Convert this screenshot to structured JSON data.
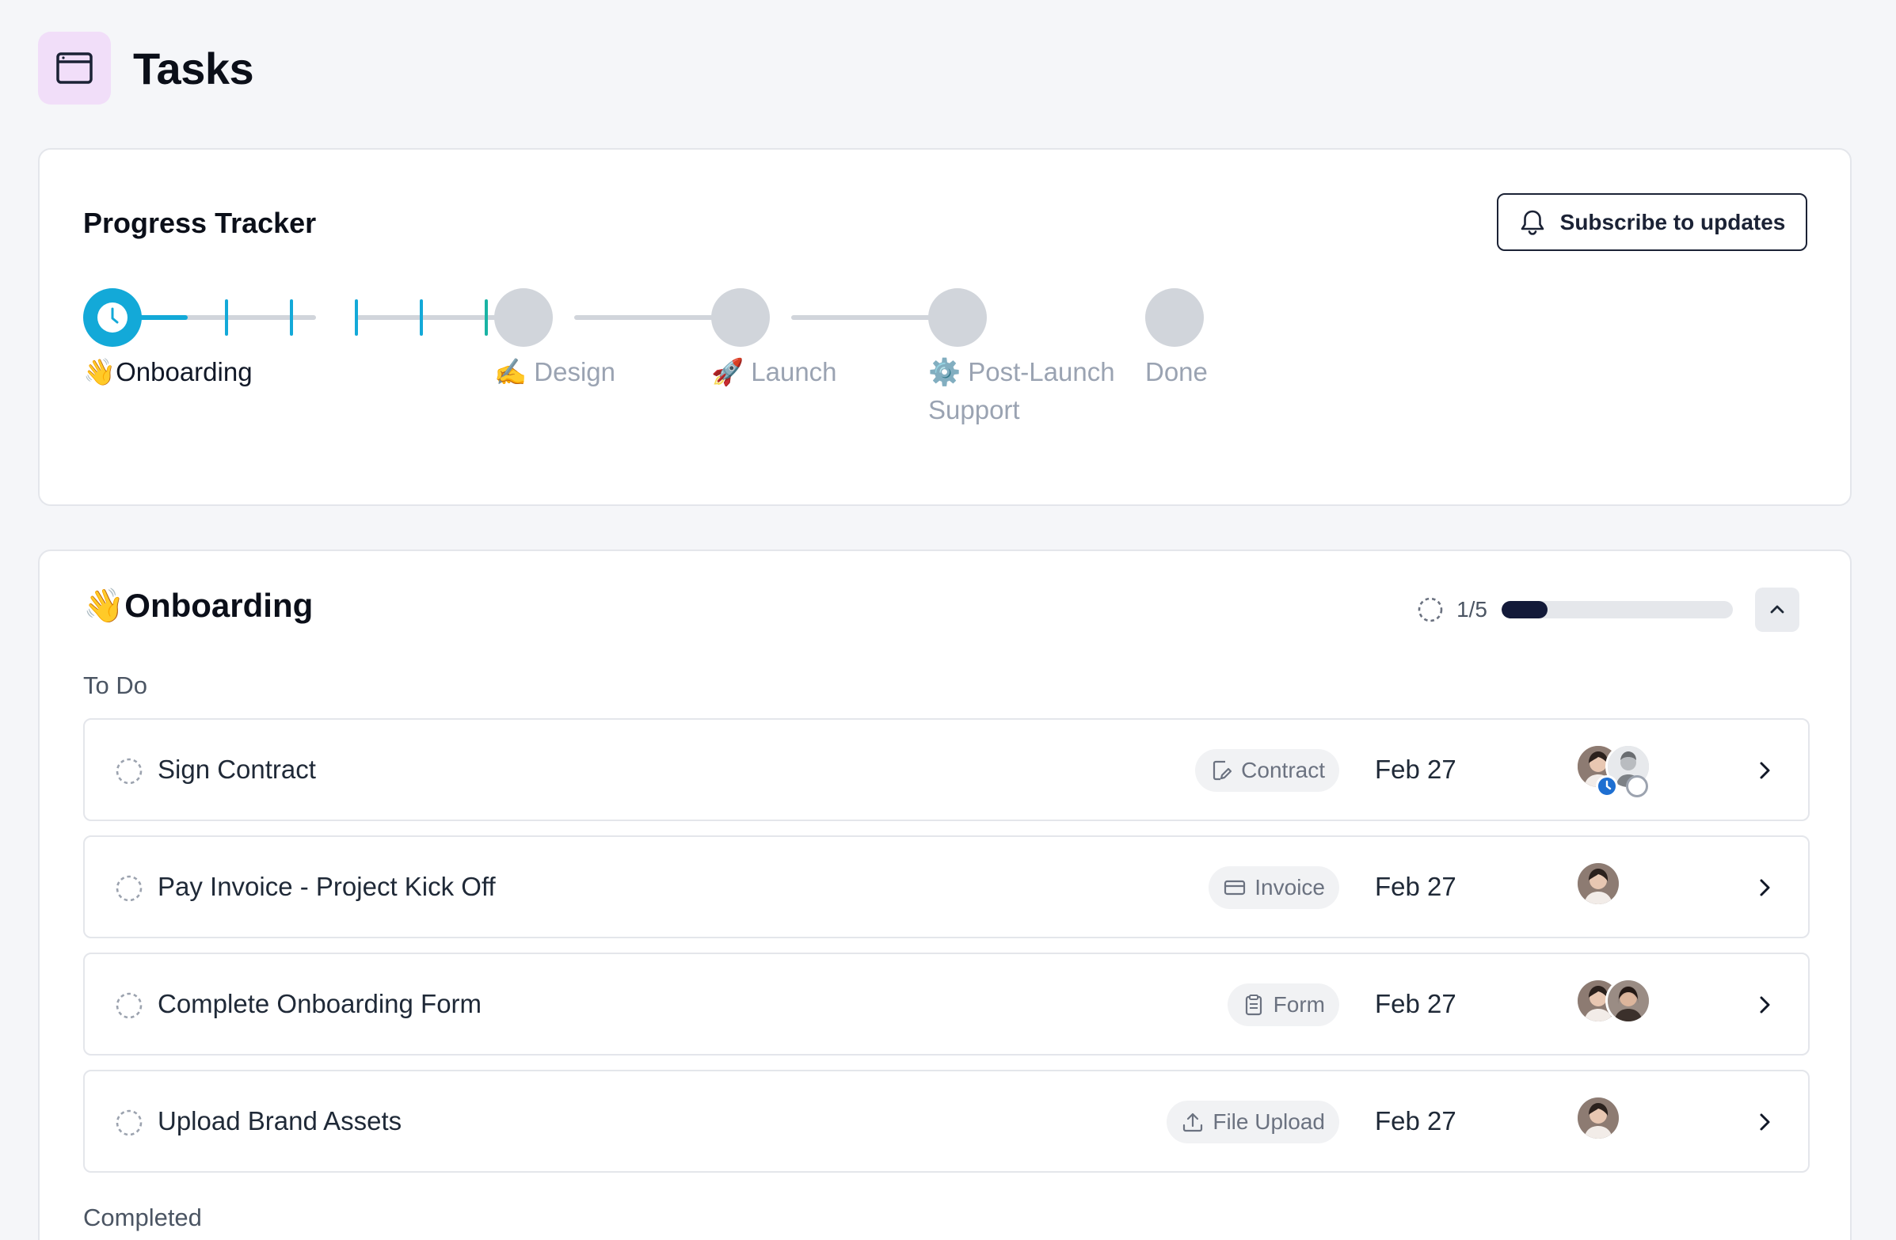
{
  "page": {
    "title": "Tasks",
    "icon": "browser-window-icon"
  },
  "tracker": {
    "title": "Progress Tracker",
    "subscribe_label": "Subscribe to updates",
    "steps": [
      {
        "label": "👋Onboarding",
        "state": "current"
      },
      {
        "label": "✍️ Design",
        "state": "upcoming"
      },
      {
        "label": "🚀 Launch",
        "state": "upcoming"
      },
      {
        "label": "⚙️ Post-Launch Support",
        "state": "upcoming"
      },
      {
        "label": "Done",
        "state": "upcoming"
      }
    ]
  },
  "onboarding": {
    "title": "👋Onboarding",
    "progress_label": "1/5",
    "progress_fraction": 0.2,
    "groups": {
      "todo": "To Do",
      "completed": "Completed"
    },
    "tasks": [
      {
        "name": "Sign Contract",
        "tag": "Contract",
        "tag_icon": "contract-icon",
        "date": "Feb 27"
      },
      {
        "name": "Pay Invoice - Project Kick Off",
        "tag": "Invoice",
        "tag_icon": "card-icon",
        "date": "Feb 27"
      },
      {
        "name": "Complete Onboarding Form",
        "tag": "Form",
        "tag_icon": "clipboard-icon",
        "date": "Feb 27"
      },
      {
        "name": "Upload Brand Assets",
        "tag": "File Upload",
        "tag_icon": "upload-icon",
        "date": "Feb 27"
      }
    ]
  },
  "colors": {
    "accent": "#13a9d8",
    "progress_fill": "#131a39",
    "header_icon_bg": "#f1def9"
  }
}
